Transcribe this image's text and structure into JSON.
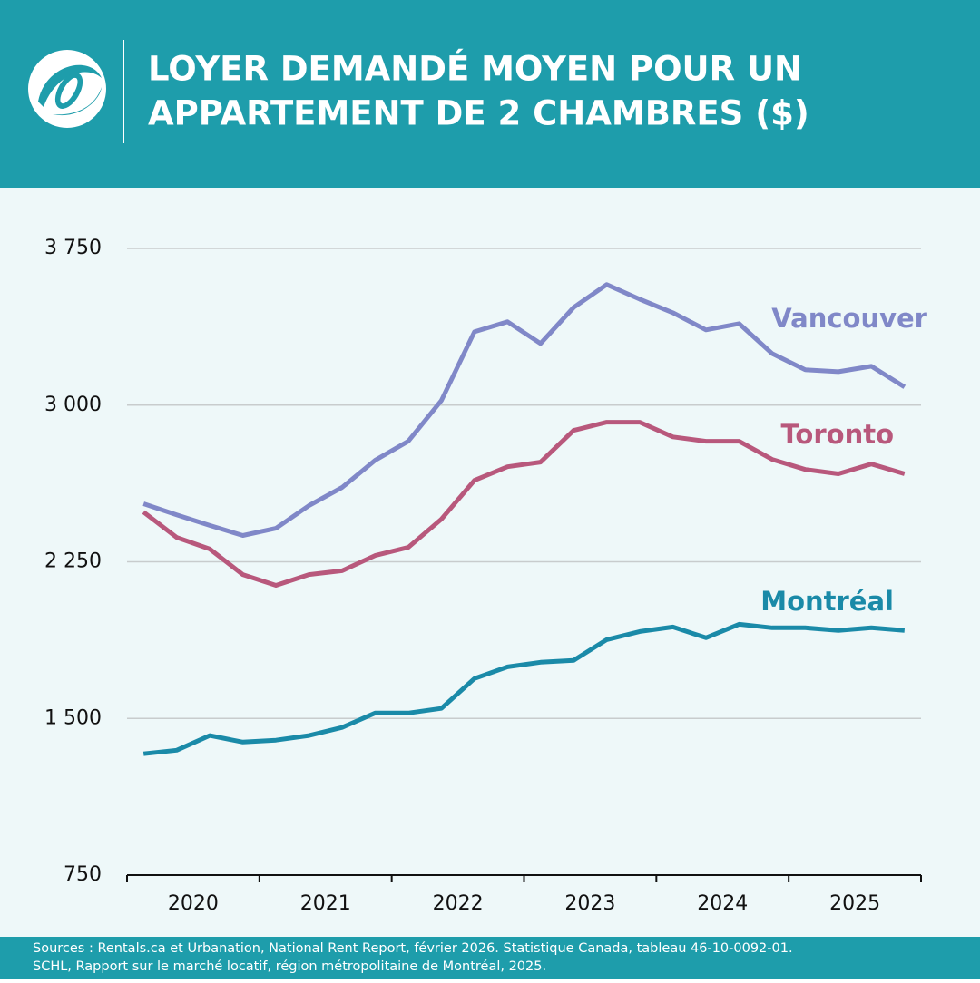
{
  "chart_data": {
    "type": "line",
    "title": [
      "LOYER DEMANDÉ MOYEN POUR UN",
      "APPARTEMENT DE 2 CHAMBRES ($)"
    ],
    "categories": [
      "2020",
      null,
      null,
      null,
      "2021",
      null,
      null,
      null,
      "2022",
      null,
      null,
      null,
      "2023",
      null,
      null,
      null,
      "2024",
      null,
      null,
      null,
      "2025",
      null,
      null,
      null
    ],
    "series": [
      {
        "name": "Vancouver",
        "color": "#8088c8",
        "values": [
          2528,
          2475,
          2424,
          2376,
          2410,
          2519,
          2606,
          2736,
          2827,
          3022,
          3351,
          3399,
          3295,
          3468,
          3577,
          3507,
          3442,
          3360,
          3390,
          3247,
          3169,
          3160,
          3186,
          3087
        ]
      },
      {
        "name": "Toronto",
        "color": "#b8587c",
        "values": [
          2488,
          2367,
          2311,
          2189,
          2137,
          2189,
          2207,
          2280,
          2319,
          2454,
          2640,
          2705,
          2727,
          2879,
          2918,
          2918,
          2848,
          2827,
          2827,
          2740,
          2692,
          2671,
          2718,
          2671
        ]
      },
      {
        "name": "Montréal",
        "color": "#1a8aa8",
        "values": [
          1331,
          1348,
          1418,
          1387,
          1396,
          1418,
          1457,
          1526,
          1526,
          1548,
          1691,
          1747,
          1769,
          1778,
          1877,
          1916,
          1938,
          1886,
          1951,
          1934,
          1934,
          1921,
          1934,
          1921
        ]
      }
    ],
    "ylim": [
      750,
      3750
    ],
    "yticks": [
      750,
      {
        "value": 1500,
        "label": "1 500"
      },
      {
        "value": 2250,
        "label": "2 250"
      },
      {
        "value": 3000,
        "label": "3 000"
      },
      {
        "value": 3750,
        "label": "3 750"
      }
    ],
    "grid": true,
    "sources": [
      "Sources : Rentals.ca et Urbanation, National Rent Report, février 2026. Statistique Canada, tableau 46-10-0092-01.",
      "SCHL, Rapport sur le marché locatif, région métropolitaine de Montréal, 2025."
    ]
  }
}
